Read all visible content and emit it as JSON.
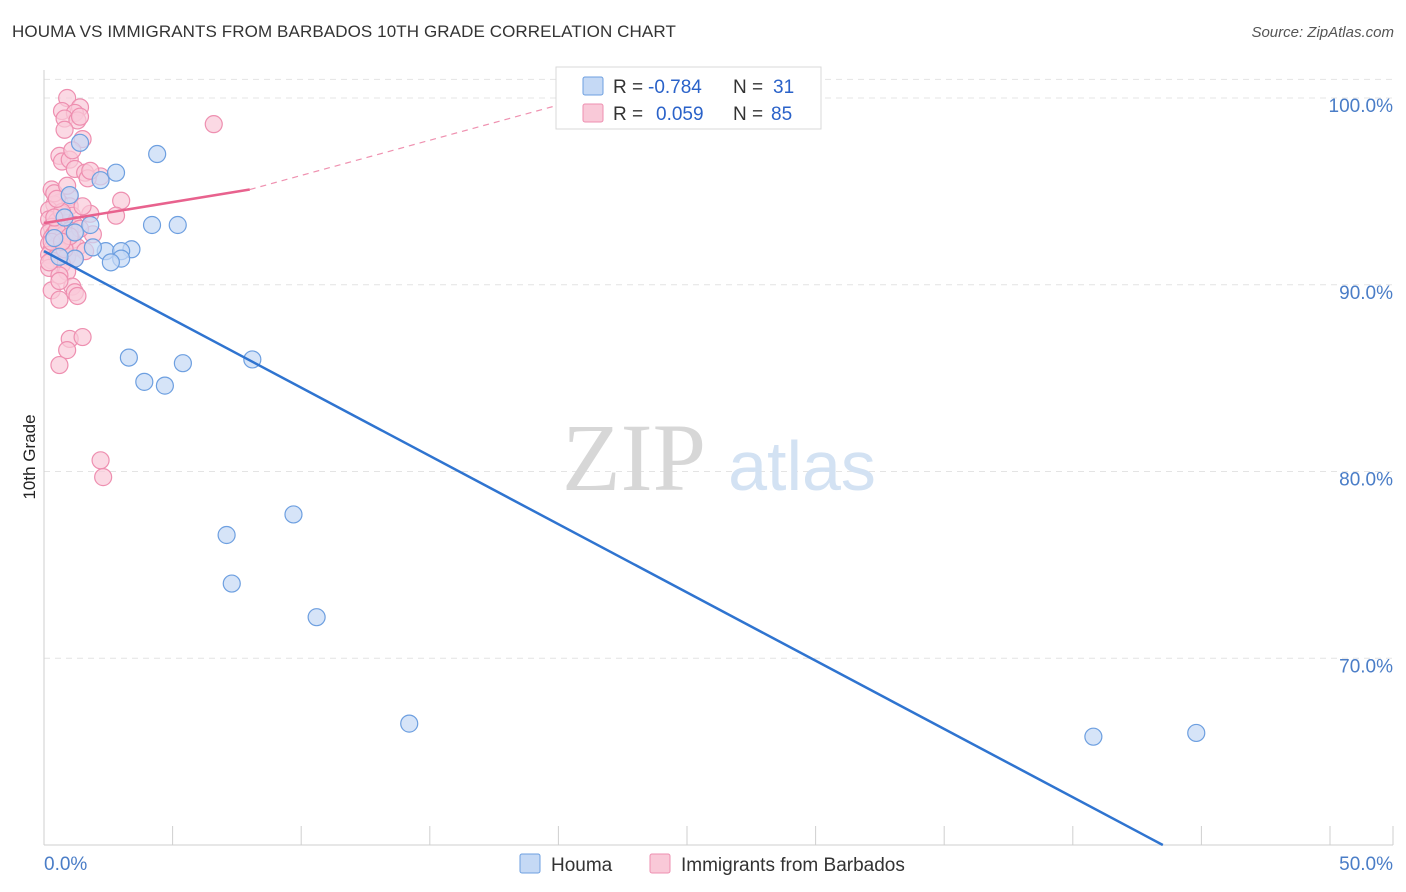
{
  "title": "HOUMA VS IMMIGRANTS FROM BARBADOS 10TH GRADE CORRELATION CHART",
  "source": "Source: ZipAtlas.com",
  "watermark": {
    "zip": "ZIP",
    "atlas": "atlas"
  },
  "colors": {
    "blue_fill": "#c5d9f5",
    "blue_stroke": "#6d9fe0",
    "blue_line": "#2f74d0",
    "pink_fill": "#f9c9d8",
    "pink_stroke": "#ee8fb0",
    "pink_line": "#e8628e",
    "tick_text": "#4a7dc7",
    "grid": "#e4e4e4"
  },
  "legend": {
    "r_label": "R =",
    "n_label": "N =",
    "rows": [
      {
        "series": "Houma",
        "r": "-0.784",
        "n": "31"
      },
      {
        "series": "Immigrants from Barbados",
        "r": "0.059",
        "n": "85"
      }
    ]
  },
  "chart_data": {
    "type": "scatter",
    "title": "HOUMA VS IMMIGRANTS FROM BARBADOS 10TH GRADE CORRELATION CHART",
    "xlabel": "",
    "ylabel": "10th Grade",
    "xlim": [
      0,
      50
    ],
    "ylim": [
      60,
      101.5
    ],
    "x_tick_labels": [
      "0.0%",
      "50.0%"
    ],
    "y_ticks": [
      70,
      80,
      90,
      100
    ],
    "y_tick_labels": [
      "70.0%",
      "80.0%",
      "90.0%",
      "100.0%"
    ],
    "grid": true,
    "legend_position": "top-center",
    "series": [
      {
        "name": "Houma",
        "color": "blue",
        "points": [
          [
            1.4,
            97.6
          ],
          [
            4.4,
            97.0
          ],
          [
            2.8,
            96.0
          ],
          [
            2.2,
            95.6
          ],
          [
            1.0,
            94.8
          ],
          [
            1.8,
            93.2
          ],
          [
            4.2,
            93.2
          ],
          [
            5.2,
            93.2
          ],
          [
            1.2,
            92.8
          ],
          [
            3.4,
            91.9
          ],
          [
            2.4,
            91.8
          ],
          [
            3.0,
            91.8
          ],
          [
            3.0,
            91.4
          ],
          [
            2.6,
            91.2
          ],
          [
            1.2,
            91.4
          ],
          [
            0.6,
            91.5
          ],
          [
            3.3,
            86.1
          ],
          [
            5.4,
            85.8
          ],
          [
            8.1,
            86.0
          ],
          [
            3.9,
            84.8
          ],
          [
            4.7,
            84.6
          ],
          [
            7.1,
            76.6
          ],
          [
            9.7,
            77.7
          ],
          [
            7.3,
            74.0
          ],
          [
            10.6,
            72.2
          ],
          [
            14.2,
            66.5
          ],
          [
            40.8,
            65.8
          ],
          [
            44.8,
            66.0
          ],
          [
            0.4,
            92.5
          ],
          [
            0.8,
            93.6
          ],
          [
            1.9,
            92.0
          ]
        ],
        "trend_line": {
          "x": [
            0,
            43.5
          ],
          "y": [
            91.8,
            60.0
          ]
        }
      },
      {
        "name": "Immigrants from Barbados",
        "color": "pink",
        "points": [
          [
            0.9,
            100.0
          ],
          [
            1.4,
            99.5
          ],
          [
            0.7,
            99.3
          ],
          [
            1.2,
            99.2
          ],
          [
            0.8,
            98.9
          ],
          [
            1.3,
            98.8
          ],
          [
            6.6,
            98.6
          ],
          [
            0.8,
            98.3
          ],
          [
            1.5,
            97.8
          ],
          [
            0.6,
            96.9
          ],
          [
            0.7,
            96.6
          ],
          [
            1.0,
            96.7
          ],
          [
            1.2,
            96.2
          ],
          [
            1.6,
            96.0
          ],
          [
            2.2,
            95.8
          ],
          [
            1.7,
            95.7
          ],
          [
            0.3,
            95.1
          ],
          [
            1.0,
            94.7
          ],
          [
            0.6,
            94.4
          ],
          [
            0.4,
            94.3
          ],
          [
            1.0,
            94.2
          ],
          [
            3.0,
            94.5
          ],
          [
            0.2,
            94.0
          ],
          [
            0.7,
            93.8
          ],
          [
            1.1,
            93.7
          ],
          [
            2.8,
            93.7
          ],
          [
            1.8,
            93.8
          ],
          [
            0.2,
            93.5
          ],
          [
            0.5,
            93.4
          ],
          [
            0.9,
            93.3
          ],
          [
            1.2,
            93.2
          ],
          [
            0.3,
            93.1
          ],
          [
            0.6,
            93.0
          ],
          [
            1.0,
            92.9
          ],
          [
            0.2,
            92.8
          ],
          [
            0.4,
            92.7
          ],
          [
            0.8,
            92.7
          ],
          [
            1.9,
            92.7
          ],
          [
            0.3,
            92.5
          ],
          [
            0.6,
            92.4
          ],
          [
            1.1,
            92.4
          ],
          [
            0.2,
            92.2
          ],
          [
            0.5,
            92.1
          ],
          [
            0.8,
            92.0
          ],
          [
            1.3,
            92.0
          ],
          [
            0.3,
            91.9
          ],
          [
            0.6,
            91.8
          ],
          [
            1.6,
            91.8
          ],
          [
            0.2,
            91.6
          ],
          [
            0.5,
            91.5
          ],
          [
            0.9,
            91.5
          ],
          [
            1.2,
            91.4
          ],
          [
            0.3,
            91.3
          ],
          [
            0.7,
            91.1
          ],
          [
            0.2,
            90.9
          ],
          [
            0.9,
            90.7
          ],
          [
            0.6,
            90.5
          ],
          [
            1.1,
            89.9
          ],
          [
            0.3,
            89.7
          ],
          [
            1.2,
            89.6
          ],
          [
            1.3,
            89.4
          ],
          [
            0.6,
            89.2
          ],
          [
            1.0,
            87.1
          ],
          [
            1.5,
            87.2
          ],
          [
            0.9,
            86.5
          ],
          [
            0.6,
            85.7
          ],
          [
            2.2,
            80.6
          ],
          [
            2.3,
            79.7
          ],
          [
            1.8,
            96.1
          ],
          [
            0.4,
            94.9
          ],
          [
            0.7,
            93.9
          ],
          [
            1.4,
            93.0
          ],
          [
            0.5,
            92.9
          ],
          [
            0.3,
            92.3
          ],
          [
            0.8,
            91.9
          ],
          [
            1.0,
            92.6
          ],
          [
            0.4,
            93.6
          ],
          [
            1.5,
            94.2
          ],
          [
            0.2,
            91.2
          ],
          [
            0.6,
            90.2
          ],
          [
            1.4,
            99.0
          ],
          [
            1.1,
            97.2
          ],
          [
            0.9,
            95.3
          ],
          [
            0.5,
            94.6
          ],
          [
            0.7,
            92.3
          ]
        ],
        "trend_line": {
          "x": [
            0,
            8
          ],
          "y": [
            93.3,
            95.1
          ]
        },
        "trend_line_extension": {
          "x": [
            8,
            21
          ],
          "y": [
            95.1,
            100.0
          ]
        }
      }
    ]
  }
}
